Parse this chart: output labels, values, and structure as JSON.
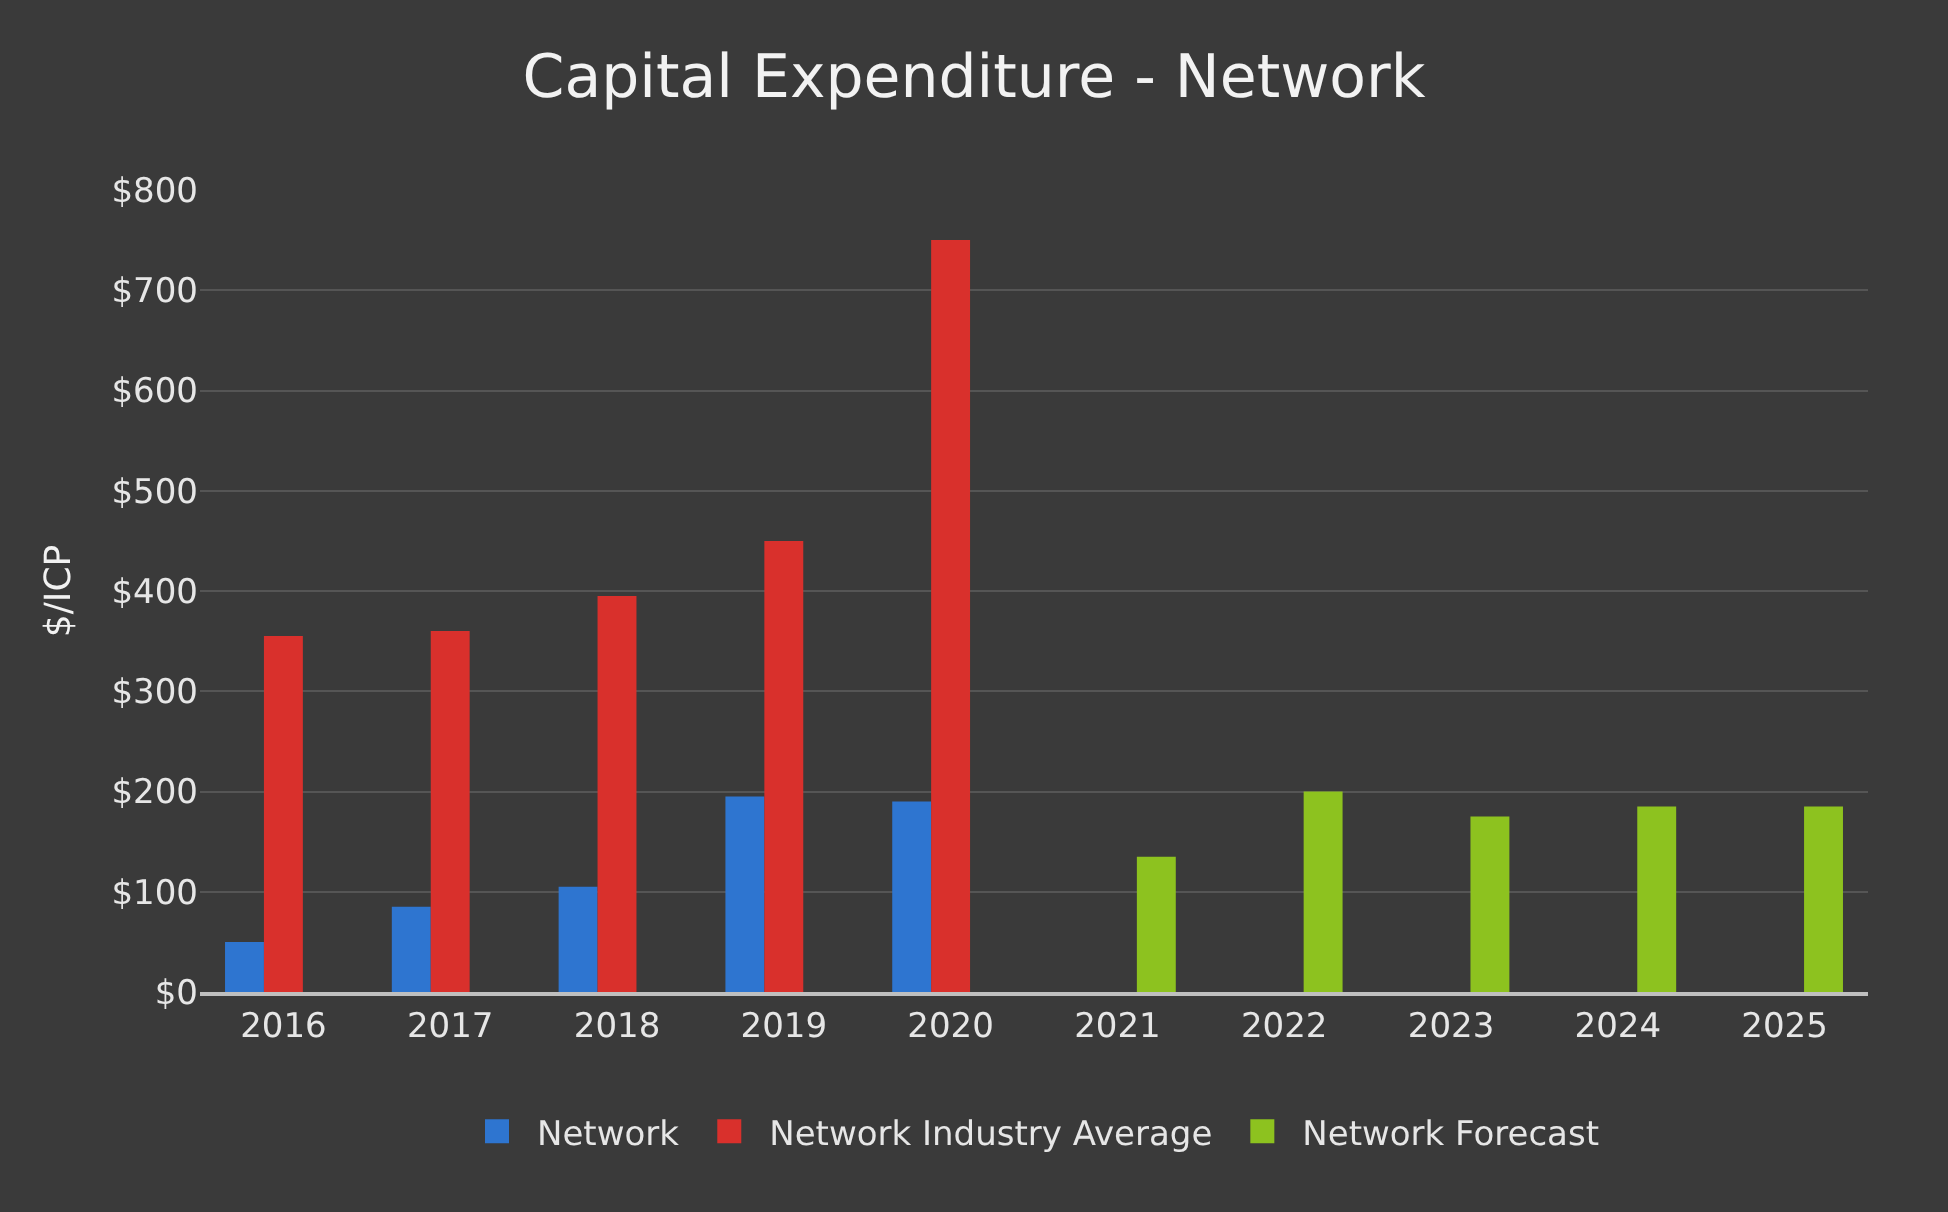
{
  "chart_data": {
    "type": "bar",
    "title": "Capital Expenditure - Network",
    "ylabel": "$/ICP",
    "categories": [
      "2016",
      "2017",
      "2018",
      "2019",
      "2020",
      "2021",
      "2022",
      "2023",
      "2024",
      "2025"
    ],
    "series": [
      {
        "name": "Network",
        "color": "#2e75d0",
        "values": [
          50,
          85,
          105,
          195,
          190,
          null,
          null,
          null,
          null,
          null
        ]
      },
      {
        "name": "Network Industry Average",
        "color": "#d9302c",
        "values": [
          355,
          360,
          395,
          450,
          750,
          null,
          null,
          null,
          null,
          null
        ]
      },
      {
        "name": "Network Forecast",
        "color": "#8dc21f",
        "values": [
          null,
          null,
          null,
          null,
          null,
          135,
          200,
          175,
          185,
          185
        ]
      }
    ],
    "ylim": [
      0,
      800
    ],
    "yticks": [
      {
        "value": 0,
        "label": "$0"
      },
      {
        "value": 100,
        "label": "$100"
      },
      {
        "value": 200,
        "label": "$200"
      },
      {
        "value": 300,
        "label": "$300"
      },
      {
        "value": 400,
        "label": "$400"
      },
      {
        "value": 500,
        "label": "$500"
      },
      {
        "value": 600,
        "label": "$600"
      },
      {
        "value": 700,
        "label": "$700"
      },
      {
        "value": 800,
        "label": "$800"
      }
    ],
    "grid": "y",
    "legend": "bottom"
  }
}
